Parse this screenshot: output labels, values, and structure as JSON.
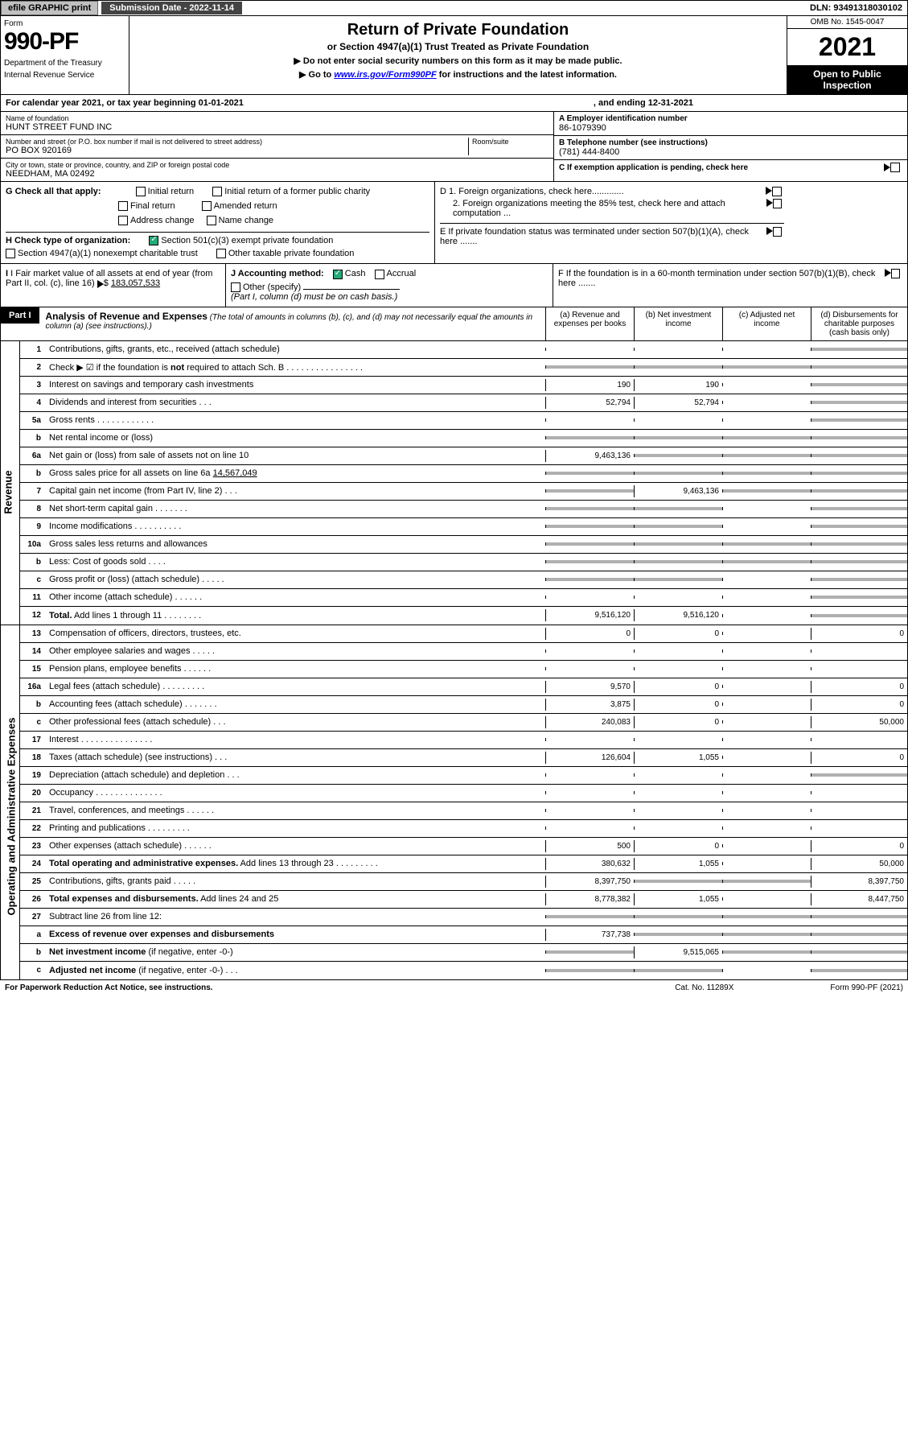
{
  "topbar": {
    "efile": "efile GRAPHIC print",
    "sub_lbl": "Submission Date - 2022-11-14",
    "dln": "DLN: 93491318030102"
  },
  "header": {
    "form": "Form",
    "num": "990-PF",
    "dept": "Department of the Treasury",
    "irs": "Internal Revenue Service",
    "title": "Return of Private Foundation",
    "subtitle": "or Section 4947(a)(1) Trust Treated as Private Foundation",
    "note1": "▶ Do not enter social security numbers on this form as it may be made public.",
    "note2_pre": "▶ Go to ",
    "note2_link": "www.irs.gov/Form990PF",
    "note2_post": " for instructions and the latest information.",
    "omb": "OMB No. 1545-0047",
    "year": "2021",
    "open": "Open to Public Inspection"
  },
  "cal": {
    "text": "For calendar year 2021, or tax year beginning 01-01-2021",
    "end": ", and ending 12-31-2021"
  },
  "info": {
    "name_lbl": "Name of foundation",
    "name": "HUNT STREET FUND INC",
    "addr_lbl": "Number and street (or P.O. box number if mail is not delivered to street address)",
    "addr": "PO BOX 920169",
    "room_lbl": "Room/suite",
    "city_lbl": "City or town, state or province, country, and ZIP or foreign postal code",
    "city": "NEEDHAM, MA  02492",
    "a_lbl": "A Employer identification number",
    "a_val": "86-1079390",
    "b_lbl": "B Telephone number (see instructions)",
    "b_val": "(781) 444-8400",
    "c_lbl": "C If exemption application is pending, check here",
    "d1": "D 1. Foreign organizations, check here.............",
    "d2": "2. Foreign organizations meeting the 85% test, check here and attach computation ...",
    "e": "E  If private foundation status was terminated under section 507(b)(1)(A), check here .......",
    "f": "F  If the foundation is in a 60-month termination under section 507(b)(1)(B), check here .......",
    "g_lbl": "G Check all that apply:",
    "g_opts": [
      "Initial return",
      "Initial return of a former public charity",
      "Final return",
      "Amended return",
      "Address change",
      "Name change"
    ],
    "h_lbl": "H Check type of organization:",
    "h_opt1": "Section 501(c)(3) exempt private foundation",
    "h_opt2": "Section 4947(a)(1) nonexempt charitable trust",
    "h_opt3": "Other taxable private foundation",
    "i_lbl": "I Fair market value of all assets at end of year (from Part II, col. (c), line 16)",
    "i_val": "183,057,533",
    "j_lbl": "J Accounting method:",
    "j_cash": "Cash",
    "j_acc": "Accrual",
    "j_other": "Other (specify)",
    "j_note": "(Part I, column (d) must be on cash basis.)"
  },
  "part": {
    "lbl": "Part I",
    "title": "Analysis of Revenue and Expenses",
    "sub": " (The total of amounts in columns (b), (c), and (d) may not necessarily equal the amounts in column (a) (see instructions).)",
    "cols": {
      "a": "(a)  Revenue and expenses per books",
      "b": "(b)  Net investment income",
      "c": "(c)  Adjusted net income",
      "d": "(d)  Disbursements for charitable purposes (cash basis only)"
    }
  },
  "rev_lbl": "Revenue",
  "oae_lbl": "Operating and Administrative Expenses",
  "rows": [
    {
      "n": "1",
      "d": "Contributions, gifts, grants, etc., received (attach schedule)",
      "a": "",
      "b": "",
      "c": "",
      "sd": true
    },
    {
      "n": "2",
      "d": "Check ▶ ☑ if the foundation is <b>not</b> required to attach Sch. B   .  .  .  .  .  .  .  .  .  .  .  .  .  .  .  .",
      "a": "",
      "b": "",
      "c": "",
      "sd": true,
      "sa": true,
      "sb": true,
      "sc": true
    },
    {
      "n": "3",
      "d": "Interest on savings and temporary cash investments",
      "a": "190",
      "b": "190",
      "c": "",
      "sd": true
    },
    {
      "n": "4",
      "d": "Dividends and interest from securities   .  .  .",
      "a": "52,794",
      "b": "52,794",
      "c": "",
      "sd": true
    },
    {
      "n": "5a",
      "d": "Gross rents   .  .  .  .  .  .  .  .  .  .  .  .",
      "a": "",
      "b": "",
      "c": "",
      "sd": true
    },
    {
      "n": "b",
      "d": "Net rental income or (loss)  ",
      "a": "",
      "b": "",
      "c": "",
      "sd": true,
      "sa": true,
      "sb": true,
      "sc": true
    },
    {
      "n": "6a",
      "d": "Net gain or (loss) from sale of assets not on line 10",
      "a": "9,463,136",
      "b": "",
      "c": "",
      "sd": true,
      "sb": true,
      "sc": true
    },
    {
      "n": "b",
      "d": "Gross sales price for all assets on line 6a <u>        14,567,049</u>",
      "a": "",
      "b": "",
      "c": "",
      "sd": true,
      "sa": true,
      "sb": true,
      "sc": true
    },
    {
      "n": "7",
      "d": "Capital gain net income (from Part IV, line 2)   .  .  .",
      "a": "",
      "b": "9,463,136",
      "c": "",
      "sd": true,
      "sa": true,
      "sc": true
    },
    {
      "n": "8",
      "d": "Net short-term capital gain   .  .  .  .  .  .  .",
      "a": "",
      "b": "",
      "c": "",
      "sd": true,
      "sa": true,
      "sb": true
    },
    {
      "n": "9",
      "d": "Income modifications .  .  .  .  .  .  .  .  .  .",
      "a": "",
      "b": "",
      "c": "",
      "sd": true,
      "sa": true,
      "sb": true
    },
    {
      "n": "10a",
      "d": "Gross sales less returns and allowances",
      "a": "",
      "b": "",
      "c": "",
      "sd": true,
      "sa": true,
      "sb": true,
      "sc": true
    },
    {
      "n": "b",
      "d": "Less: Cost of goods sold   .  .  .  .",
      "a": "",
      "b": "",
      "c": "",
      "sd": true,
      "sa": true,
      "sb": true,
      "sc": true
    },
    {
      "n": "c",
      "d": "Gross profit or (loss) (attach schedule)   .  .  .  .  .",
      "a": "",
      "b": "",
      "c": "",
      "sd": true,
      "sa": true,
      "sb": true
    },
    {
      "n": "11",
      "d": "Other income (attach schedule)   .  .  .  .  .  .",
      "a": "",
      "b": "",
      "c": "",
      "sd": true
    },
    {
      "n": "12",
      "d": "<b>Total.</b> Add lines 1 through 11   .  .  .  .  .  .  .  .",
      "a": "9,516,120",
      "b": "9,516,120",
      "c": "",
      "sd": true
    }
  ],
  "oae": [
    {
      "n": "13",
      "d": "Compensation of officers, directors, trustees, etc.",
      "a": "0",
      "b": "0",
      "c": "",
      "dd": "0"
    },
    {
      "n": "14",
      "d": "Other employee salaries and wages   .  .  .  .  .",
      "a": "",
      "b": "",
      "c": "",
      "dd": ""
    },
    {
      "n": "15",
      "d": "Pension plans, employee benefits  .  .  .  .  .  .",
      "a": "",
      "b": "",
      "c": "",
      "dd": ""
    },
    {
      "n": "16a",
      "d": "Legal fees (attach schedule) .  .  .  .  .  .  .  .  .",
      "a": "9,570",
      "b": "0",
      "c": "",
      "dd": "0"
    },
    {
      "n": "b",
      "d": "Accounting fees (attach schedule) .  .  .  .  .  .  .",
      "a": "3,875",
      "b": "0",
      "c": "",
      "dd": "0"
    },
    {
      "n": "c",
      "d": "Other professional fees (attach schedule)   .  .  .",
      "a": "240,083",
      "b": "0",
      "c": "",
      "dd": "50,000"
    },
    {
      "n": "17",
      "d": "Interest .  .  .  .  .  .  .  .  .  .  .  .  .  .  .",
      "a": "",
      "b": "",
      "c": "",
      "dd": ""
    },
    {
      "n": "18",
      "d": "Taxes (attach schedule) (see instructions)   .  .  .",
      "a": "126,604",
      "b": "1,055",
      "c": "",
      "dd": "0"
    },
    {
      "n": "19",
      "d": "Depreciation (attach schedule) and depletion   .  .  .",
      "a": "",
      "b": "",
      "c": "",
      "dd": "",
      "sd": true
    },
    {
      "n": "20",
      "d": "Occupancy .  .  .  .  .  .  .  .  .  .  .  .  .  .",
      "a": "",
      "b": "",
      "c": "",
      "dd": ""
    },
    {
      "n": "21",
      "d": "Travel, conferences, and meetings .  .  .  .  .  .",
      "a": "",
      "b": "",
      "c": "",
      "dd": ""
    },
    {
      "n": "22",
      "d": "Printing and publications .  .  .  .  .  .  .  .  .",
      "a": "",
      "b": "",
      "c": "",
      "dd": ""
    },
    {
      "n": "23",
      "d": "Other expenses (attach schedule) .  .  .  .  .  .",
      "a": "500",
      "b": "0",
      "c": "",
      "dd": "0"
    },
    {
      "n": "24",
      "d": "<b>Total operating and administrative expenses.</b> Add lines 13 through 23   .  .  .  .  .  .  .  .  .",
      "a": "380,632",
      "b": "1,055",
      "c": "",
      "dd": "50,000"
    },
    {
      "n": "25",
      "d": "Contributions, gifts, grants paid   .  .  .  .  .",
      "a": "8,397,750",
      "b": "",
      "c": "",
      "dd": "8,397,750",
      "sb": true,
      "sc": true
    },
    {
      "n": "26",
      "d": "<b>Total expenses and disbursements.</b> Add lines 24 and 25",
      "a": "8,778,382",
      "b": "1,055",
      "c": "",
      "dd": "8,447,750"
    },
    {
      "n": "27",
      "d": "Subtract line 26 from line 12:",
      "a": "",
      "b": "",
      "c": "",
      "dd": "",
      "sa": true,
      "sb": true,
      "sc": true,
      "sd": true
    },
    {
      "n": "a",
      "d": "<b>Excess of revenue over expenses and disbursements</b>",
      "a": "737,738",
      "b": "",
      "c": "",
      "dd": "",
      "sb": true,
      "sc": true,
      "sd": true
    },
    {
      "n": "b",
      "d": "<b>Net investment income</b> (if negative, enter -0-)",
      "a": "",
      "b": "9,515,065",
      "c": "",
      "dd": "",
      "sa": true,
      "sc": true,
      "sd": true
    },
    {
      "n": "c",
      "d": "<b>Adjusted net income</b> (if negative, enter -0-)   .  .  .",
      "a": "",
      "b": "",
      "c": "",
      "dd": "",
      "sa": true,
      "sb": true,
      "sd": true
    }
  ],
  "footer": {
    "l": "For Paperwork Reduction Act Notice, see instructions.",
    "m": "Cat. No. 11289X",
    "r": "Form 990-PF (2021)"
  }
}
